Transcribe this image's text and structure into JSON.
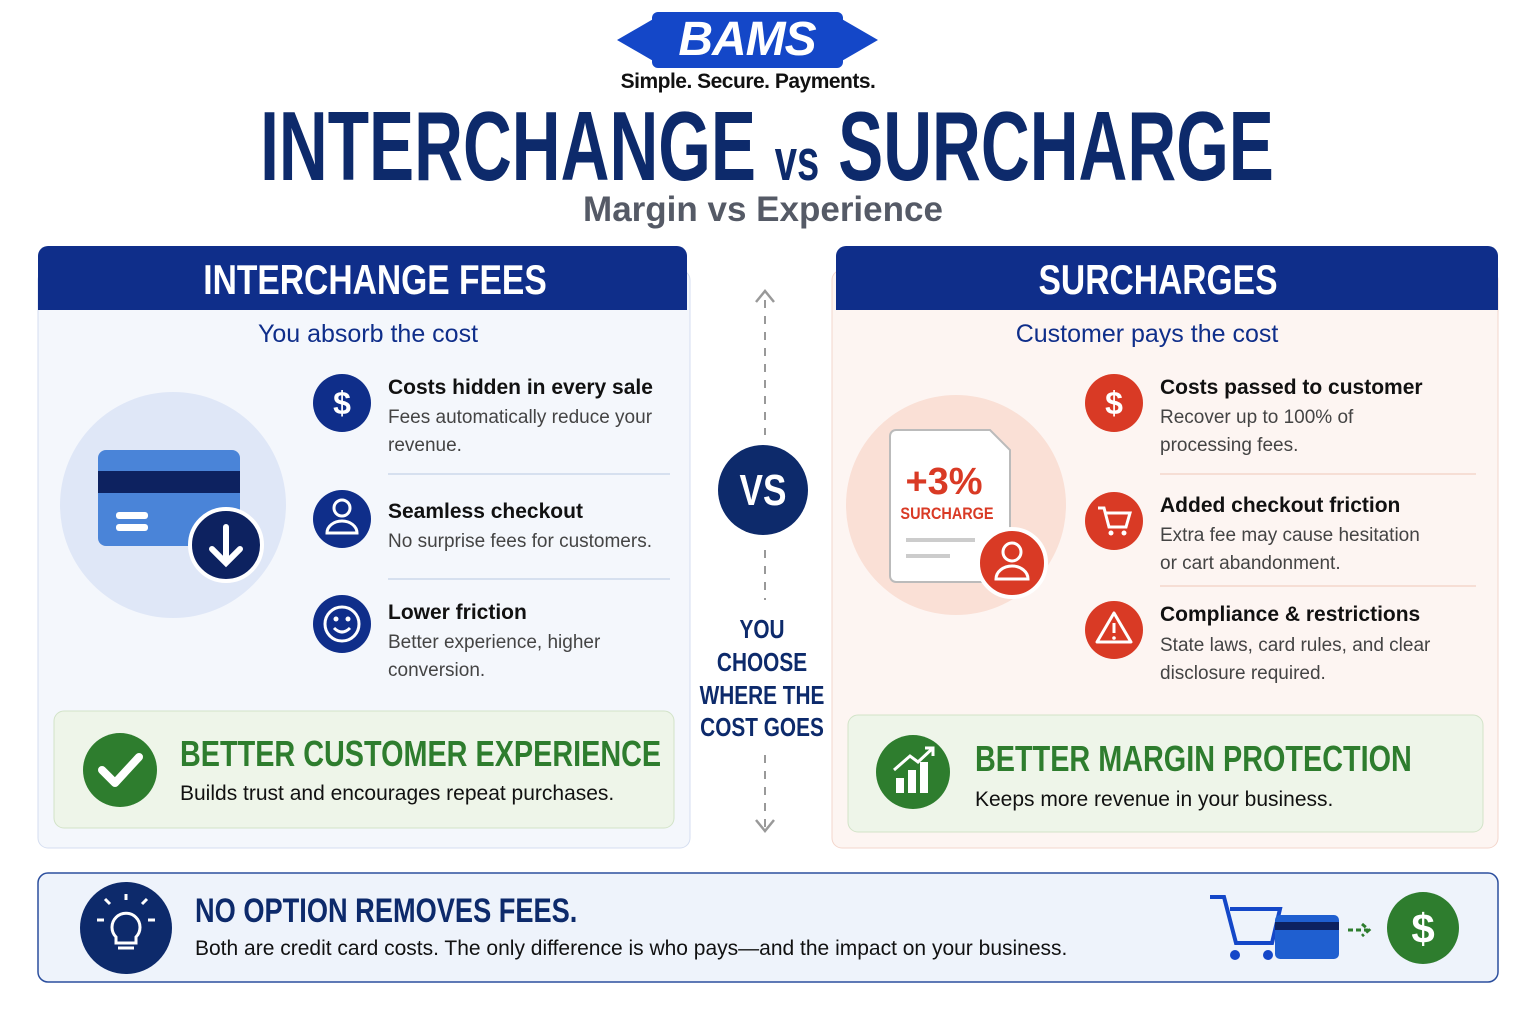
{
  "header": {
    "logo": "BAMS",
    "tagline": "Simple. Secure. Payments.",
    "title_left": "INTERCHANGE",
    "title_vs": "vs",
    "title_right": "SURCHARGE",
    "subtitle": "Margin vs Experience"
  },
  "symbols": {
    "dollar": "$"
  },
  "left": {
    "heading": "INTERCHANGE FEES",
    "subheading": "You absorb the cost",
    "items": [
      {
        "title": "Costs hidden in every sale",
        "text_lines": [
          "Fees automatically reduce your",
          "revenue."
        ]
      },
      {
        "title": "Seamless checkout",
        "text_lines": [
          "No surprise fees for customers."
        ]
      },
      {
        "title": "Lower friction",
        "text_lines": [
          "Better experience, higher",
          "conversion."
        ]
      }
    ],
    "callout": {
      "title": "BETTER CUSTOMER EXPERIENCE",
      "text": "Builds trust and encourages repeat purchases."
    }
  },
  "center": {
    "badge": "VS",
    "lines": [
      "YOU",
      "CHOOSE",
      "WHERE THE",
      "COST GOES"
    ]
  },
  "right": {
    "heading": "SURCHARGES",
    "subheading": "Customer pays the cost",
    "illustration": {
      "percent": "+3%",
      "label": "SURCHARGE"
    },
    "items": [
      {
        "title": "Costs passed to customer",
        "text_lines": [
          "Recover up to 100% of",
          "processing fees."
        ]
      },
      {
        "title": "Added checkout friction",
        "text_lines": [
          "Extra fee may cause hesitation",
          "or cart abandonment."
        ]
      },
      {
        "title": "Compliance & restrictions",
        "text_lines": [
          "State laws, card rules, and clear",
          "disclosure required."
        ]
      }
    ],
    "callout": {
      "title": "BETTER MARGIN PROTECTION",
      "text": "Keeps more revenue in your business."
    }
  },
  "footer": {
    "title": "NO OPTION REMOVES FEES.",
    "text": "Both are credit card costs. The only difference is who pays—and the impact on your business."
  }
}
